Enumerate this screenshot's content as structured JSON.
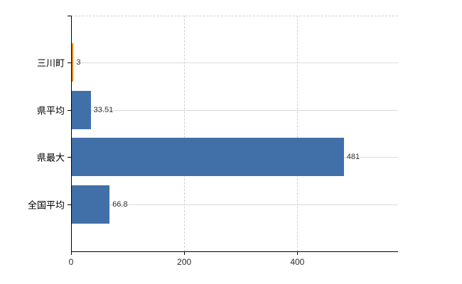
{
  "chart_data": {
    "type": "bar",
    "orientation": "horizontal",
    "title": "",
    "xlabel": "",
    "ylabel": "",
    "categories": [
      "三川町",
      "県平均",
      "県最大",
      "全国平均"
    ],
    "values": [
      3,
      33.51,
      481,
      66.8
    ],
    "value_labels": [
      "3",
      "33.51",
      "481",
      "66.8"
    ],
    "bar_colors": [
      "#e8821e",
      "#4170a9",
      "#4170a9",
      "#4170a9"
    ],
    "x_ticks": [
      0,
      200,
      400
    ],
    "x_tick_labels": [
      "0",
      "200",
      "400"
    ],
    "xlim": [
      0,
      578
    ],
    "grid": true,
    "legend_position": "none",
    "colors": {
      "bar_default": "#4170a9",
      "bar_highlight": "#e8821e",
      "axis": "#000000",
      "horizontal_gridline": "#d9ddd6",
      "dashed_gridline": "#d0d0d0",
      "value_label_text": "#333333",
      "tick_label_text": "#2a2a2a",
      "category_label_text": "#000000",
      "background": "#ffffff"
    }
  }
}
